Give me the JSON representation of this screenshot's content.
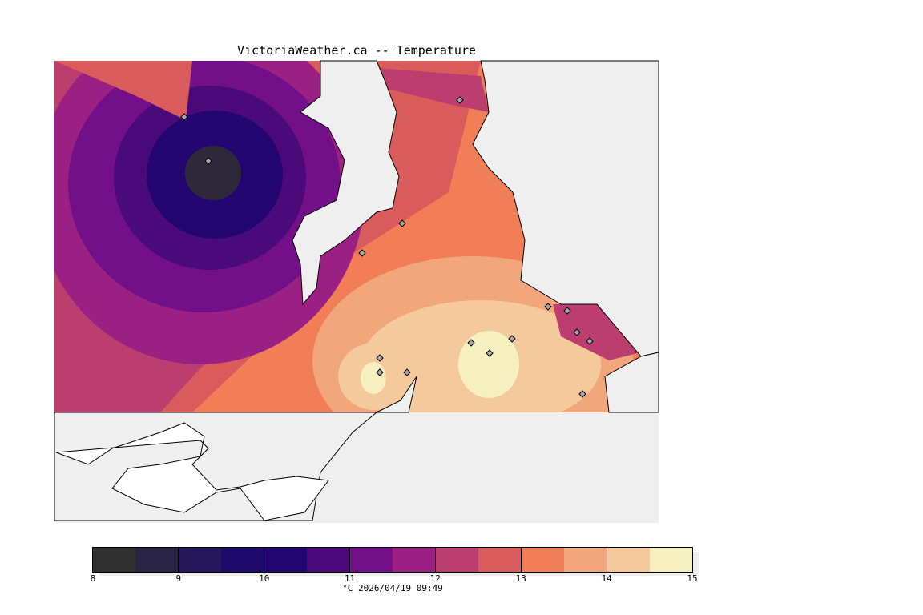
{
  "title": "VictoriaWeather.ca -- Temperature",
  "colorbar": {
    "unit_timestamp": "°C  2026/04/19 09:49",
    "ticks": [
      "8",
      "9",
      "10",
      "11",
      "12",
      "13",
      "14",
      "15"
    ],
    "range": [
      8,
      15
    ],
    "colors": [
      "#303030",
      "#2a2444",
      "#26185a",
      "#1e0a6a",
      "#230670",
      "#4a0a7a",
      "#731089",
      "#9a2183",
      "#bc3e6f",
      "#d95b5c",
      "#f27e58",
      "#f2a67b",
      "#f4c99c",
      "#f6efc0"
    ]
  },
  "stations_temp_c": [
    12.5,
    8.3,
    12.0,
    12.8,
    13.8,
    14.5,
    14.3,
    14.8,
    13.3,
    12.6,
    14.6,
    14.6,
    14.2,
    14.1,
    12.4,
    12.3
  ]
}
